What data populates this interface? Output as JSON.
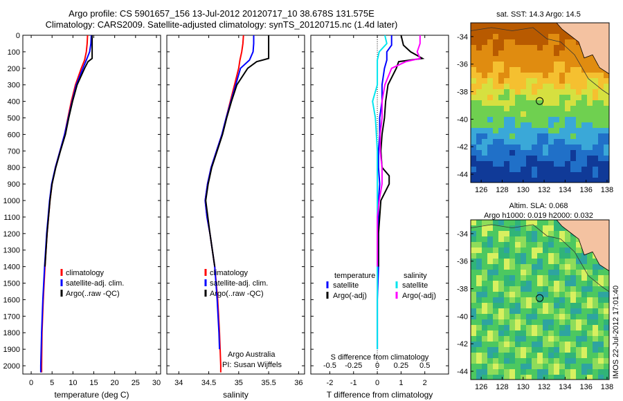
{
  "header": {
    "line1": "Argo profile: CS 5901657_156 13-Jul-2012 20120717_10 38.678S 131.575E",
    "line2": "Climatology: CARS2009. Satellite-adjusted climatology: synTS_20120715.nc (1.4d later)"
  },
  "colors": {
    "climatology": "#ff0000",
    "satellite": "#0000ff",
    "argo": "#000000",
    "sal_sat": "#00e5ee",
    "sal_argo": "#ff00ff"
  },
  "chart_data": [
    {
      "type": "line",
      "xlabel": "temperature (deg C)",
      "ylabel": "",
      "xlim": [
        -2,
        31
      ],
      "ylim": [
        2050,
        0
      ],
      "xticks": [
        "0",
        "5",
        "10",
        "15",
        "20",
        "25",
        "30"
      ],
      "yticks": [
        "0",
        "100",
        "200",
        "300",
        "400",
        "500",
        "600",
        "700",
        "800",
        "900",
        "1000",
        "1100",
        "1200",
        "1300",
        "1400",
        "1500",
        "1600",
        "1700",
        "1800",
        "1900",
        "2000"
      ],
      "legend": [
        "climatology",
        "satellite-adj. clim.",
        "Argo(..raw -QC)"
      ],
      "legend_position": "lower-center",
      "series": [
        {
          "name": "climatology",
          "color": "#ff0000",
          "depth": [
            0,
            50,
            100,
            150,
            200,
            300,
            400,
            500,
            600,
            700,
            800,
            900,
            1000,
            1200,
            1400,
            1600,
            1800,
            2000,
            2040
          ],
          "values": [
            13.5,
            13.4,
            13.2,
            12.8,
            12.0,
            10.6,
            9.6,
            8.8,
            8.0,
            6.9,
            5.8,
            5.0,
            4.5,
            3.8,
            3.3,
            2.9,
            2.6,
            2.5,
            2.5
          ]
        },
        {
          "name": "satellite-adj. clim.",
          "color": "#0000ff",
          "depth": [
            0,
            50,
            100,
            150,
            200,
            300,
            400,
            500,
            600,
            700,
            800,
            900,
            1000,
            1200,
            1400,
            1600,
            1800,
            2000,
            2040
          ],
          "values": [
            14.4,
            14.3,
            14.0,
            13.2,
            12.4,
            10.8,
            9.8,
            8.9,
            8.0,
            6.9,
            5.8,
            4.9,
            4.4,
            3.7,
            3.2,
            2.8,
            2.5,
            2.3,
            2.3
          ]
        },
        {
          "name": "Argo(..raw -QC)",
          "color": "#000000",
          "depth": [
            0,
            50,
            100,
            140,
            160,
            200,
            300,
            400,
            500,
            600,
            700,
            800,
            900,
            1000,
            1200,
            1400
          ],
          "values": [
            14.6,
            14.6,
            14.6,
            14.6,
            13.6,
            12.8,
            11.0,
            9.9,
            9.0,
            8.2,
            7.0,
            5.9,
            5.0,
            4.5,
            3.8,
            3.3
          ]
        }
      ]
    },
    {
      "type": "line",
      "xlabel": "salinity",
      "ylabel": "",
      "xlim": [
        33.8,
        36.1
      ],
      "ylim": [
        2050,
        0
      ],
      "xticks": [
        "34",
        "34.5",
        "35",
        "35.5",
        "36"
      ],
      "legend": [
        "climatology",
        "satellite-adj. clim.",
        "Argo(..raw -QC)"
      ],
      "legend_position": "lower-center",
      "annotations": [
        "Argo Australia",
        "PI: Susan Wijffels"
      ],
      "series": [
        {
          "name": "climatology",
          "color": "#ff0000",
          "depth": [
            0,
            50,
            100,
            150,
            200,
            300,
            400,
            500,
            600,
            700,
            800,
            900,
            1000,
            1100,
            1200,
            1400,
            1600,
            1800,
            2000,
            2040
          ],
          "values": [
            35.08,
            35.07,
            35.05,
            35.02,
            35.0,
            34.93,
            34.86,
            34.79,
            34.72,
            34.63,
            34.54,
            34.48,
            34.44,
            34.47,
            34.52,
            34.6,
            34.65,
            34.68,
            34.7,
            34.7
          ]
        },
        {
          "name": "satellite-adj. clim.",
          "color": "#0000ff",
          "depth": [
            0,
            50,
            100,
            150,
            200,
            300,
            400,
            500,
            600,
            700,
            800,
            900,
            1000,
            1100,
            1200,
            1400,
            1600,
            1800,
            1900
          ],
          "values": [
            35.25,
            35.25,
            35.24,
            35.18,
            35.03,
            34.95,
            34.87,
            34.79,
            34.72,
            34.63,
            34.54,
            34.48,
            34.44,
            34.47,
            34.52,
            34.6,
            34.64,
            34.67,
            34.68
          ]
        },
        {
          "name": "Argo(..raw -QC)",
          "color": "#000000",
          "depth": [
            0,
            50,
            100,
            140,
            160,
            200,
            300,
            400,
            500,
            600,
            700,
            800,
            900,
            1000,
            1200,
            1400
          ],
          "values": [
            35.5,
            35.5,
            35.5,
            35.5,
            35.3,
            35.15,
            34.97,
            34.88,
            34.8,
            34.73,
            34.64,
            34.55,
            34.49,
            34.45,
            34.52,
            34.6
          ]
        }
      ]
    },
    {
      "type": "line",
      "xlabel": "T difference from climatology",
      "top_label": "S difference from climatology",
      "xlim": [
        -2.8,
        3
      ],
      "xticks": [
        "-2",
        "-1",
        "0",
        "1",
        "2"
      ],
      "top_ticks": [
        "-0.5",
        "-0.25",
        "0",
        "0.25",
        "0.5"
      ],
      "ylim": [
        2050,
        0
      ],
      "legend_titles": [
        "temperature",
        "salinity"
      ],
      "legend": [
        "satellite",
        "Argo(-adj)",
        "satellite",
        "Argo(-adj)"
      ],
      "legend_position": "lower-center",
      "series": [
        {
          "name": "satellite",
          "group": "temperature",
          "color": "#0000ff",
          "depth": [
            0,
            60,
            100,
            150,
            200,
            300,
            400,
            500,
            600,
            700,
            800,
            900,
            1000,
            1200,
            1400,
            1600,
            1800,
            1900
          ],
          "values": [
            0.6,
            0.6,
            0.4,
            0.4,
            0.3,
            0.2,
            0.2,
            0.1,
            0.1,
            0.05,
            0.05,
            0.1,
            0.05,
            0.05,
            0.05,
            0.0,
            0.0,
            0.0
          ]
        },
        {
          "name": "Argo(-adj)",
          "group": "temperature",
          "color": "#000000",
          "depth": [
            0,
            60,
            100,
            140,
            160,
            200,
            300,
            400,
            500,
            600,
            700,
            800,
            850,
            900,
            1000,
            1200,
            1400
          ],
          "values": [
            1.0,
            1.1,
            1.4,
            1.9,
            0.9,
            0.8,
            0.45,
            0.35,
            0.3,
            0.2,
            0.15,
            0.2,
            0.5,
            0.5,
            0.15,
            0.05,
            0.05
          ]
        },
        {
          "name": "satellite",
          "group": "salinity",
          "color": "#00e5ee",
          "depth": [
            0,
            50,
            100,
            150,
            200,
            300,
            400,
            500,
            700,
            900,
            1100,
            1300,
            1500,
            1700,
            1900
          ],
          "values": [
            0.08,
            0.1,
            0.02,
            0.0,
            0.0,
            0.0,
            -0.05,
            -0.02,
            0.0,
            0.0,
            0.0,
            0.0,
            0.0,
            0.0,
            0.0
          ]
        },
        {
          "name": "Argo(-adj)",
          "group": "salinity",
          "color": "#ff00ff",
          "depth": [
            0,
            50,
            100,
            140,
            160,
            200,
            300,
            400,
            500,
            600,
            700,
            800,
            900,
            1000,
            1100,
            1200,
            1400
          ],
          "values": [
            0.45,
            0.45,
            0.42,
            0.45,
            0.3,
            0.15,
            0.08,
            0.05,
            0.05,
            0.03,
            0.03,
            0.05,
            0.05,
            0.02,
            0.0,
            0.0,
            0.0
          ]
        }
      ]
    }
  ],
  "maps": [
    {
      "title_lines": [
        "sat. SST: 14.3 Argo: 14.5"
      ],
      "xticks": [
        "126",
        "128",
        "130",
        "132",
        "134",
        "136",
        "138"
      ],
      "yticks": [
        "-34",
        "-36",
        "-38",
        "-40",
        "-42",
        "-44"
      ]
    },
    {
      "title_lines": [
        "Altim. SLA: 0.068",
        "Argo h1000: 0.019 h2000: 0.032"
      ],
      "xticks": [
        "126",
        "128",
        "130",
        "132",
        "134",
        "136",
        "138"
      ],
      "yticks": [
        "-34",
        "-36",
        "-38",
        "-40",
        "-42",
        "-44"
      ]
    }
  ],
  "stamp": "IMOS 22-Jul-2012 17:01:40"
}
